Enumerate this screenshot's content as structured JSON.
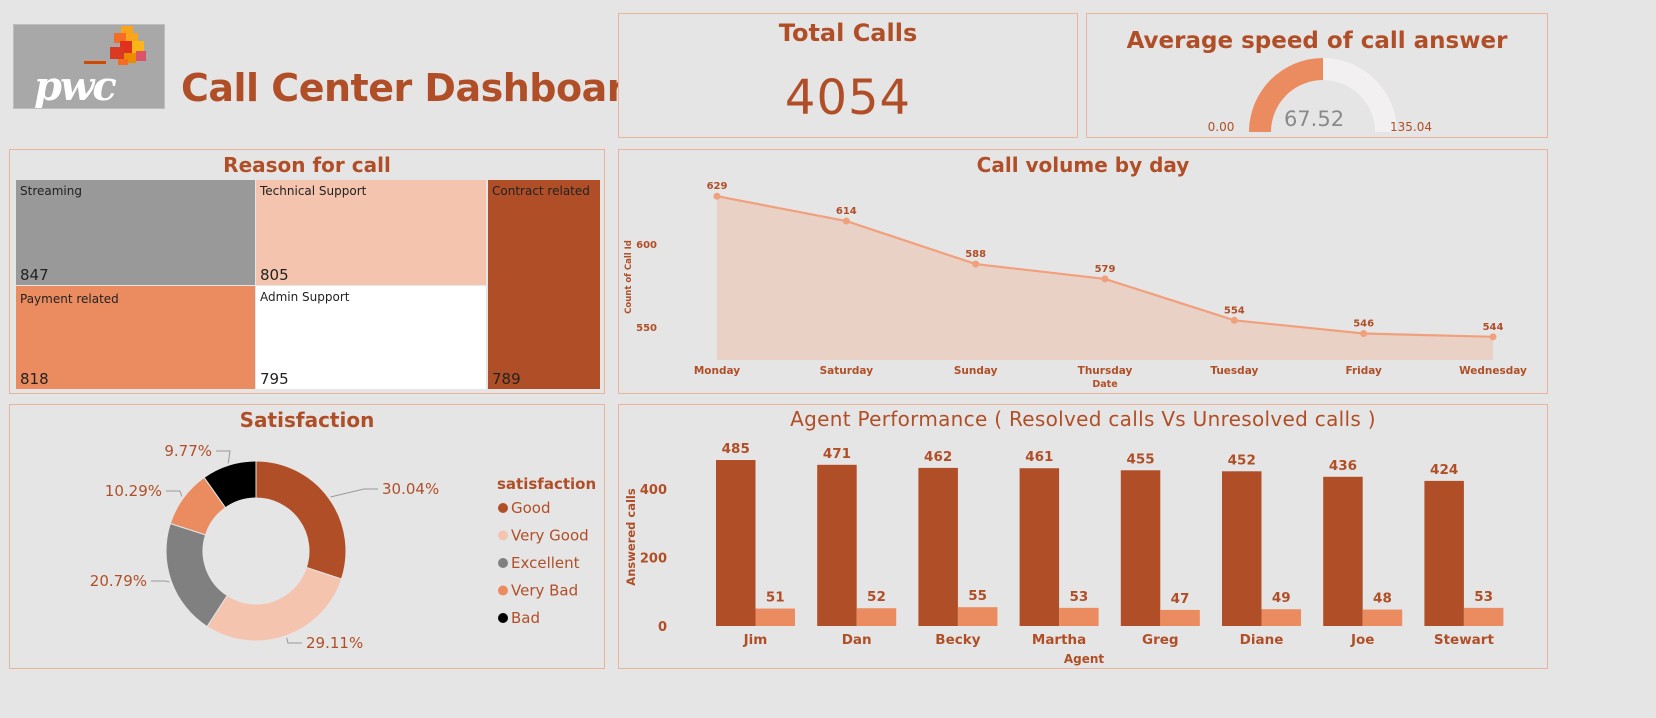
{
  "header": {
    "logo_text": "pwc",
    "title": "Call Center Dashboard"
  },
  "colors": {
    "primary": "#b04f27",
    "accent": "#eb8b60",
    "light": "#f4c4ae",
    "grey": "#999999",
    "background": "#e6e5e5",
    "border": "#e9b39c"
  },
  "total_calls": {
    "title": "Total Calls",
    "value": "4054"
  },
  "avg_speed": {
    "title": "Average speed of call answer",
    "value": 67.52,
    "min": 0,
    "max": 135.04,
    "value_label": "67.52",
    "min_label": "0.00",
    "max_label": "135.04"
  },
  "reason": {
    "title": "Reason for call",
    "items": [
      {
        "label": "Streaming",
        "value": "847"
      },
      {
        "label": "Technical Support",
        "value": "805"
      },
      {
        "label": "Contract related",
        "value": "789"
      },
      {
        "label": "Payment related",
        "value": "818"
      },
      {
        "label": "Admin Support",
        "value": "795"
      }
    ]
  },
  "call_volume": {
    "title": "Call volume by day"
  },
  "satisfaction": {
    "title": "Satisfaction"
  },
  "agent_performance": {
    "title": "Agent Performance ( Resolved calls Vs Unresolved calls )"
  },
  "chart_data": [
    {
      "type": "treemap",
      "title": "Reason for call",
      "categories": [
        "Streaming",
        "Payment related",
        "Technical Support",
        "Admin Support",
        "Contract related"
      ],
      "values": [
        847,
        818,
        805,
        795,
        789
      ]
    },
    {
      "type": "area",
      "title": "Call volume by day",
      "xlabel": "Date",
      "ylabel": "Count of Call Id",
      "categories": [
        "Monday",
        "Saturday",
        "Sunday",
        "Thursday",
        "Tuesday",
        "Friday",
        "Wednesday"
      ],
      "values": [
        629,
        614,
        588,
        579,
        554,
        546,
        544
      ],
      "yticks": [
        550,
        600
      ],
      "ylim": [
        530,
        640
      ]
    },
    {
      "type": "pie",
      "title": "Satisfaction",
      "legend_title": "satisfaction",
      "categories": [
        "Good",
        "Very Good",
        "Excellent",
        "Very Bad",
        "Bad"
      ],
      "values": [
        30.04,
        29.11,
        20.79,
        10.29,
        9.77
      ],
      "labels": [
        "30.04%",
        "29.11%",
        "20.79%",
        "10.29%",
        "9.77%"
      ],
      "colors": [
        "#b04f27",
        "#f4c4ae",
        "#808080",
        "#eb8b60",
        "#000000"
      ]
    },
    {
      "type": "bar",
      "title": "Agent Performance ( Resolved calls Vs Unresolved calls )",
      "xlabel": "Agent",
      "ylabel": "Answered calls",
      "categories": [
        "Jim",
        "Dan",
        "Becky",
        "Martha",
        "Greg",
        "Diane",
        "Joe",
        "Stewart"
      ],
      "series": [
        {
          "values": [
            485,
            471,
            462,
            461,
            455,
            452,
            436,
            424
          ],
          "color": "#b04f27"
        },
        {
          "values": [
            51,
            52,
            55,
            53,
            47,
            49,
            48,
            53
          ],
          "color": "#eb8b60"
        }
      ],
      "yticks": [
        0,
        200,
        400
      ],
      "ylim": [
        0,
        500
      ]
    }
  ]
}
